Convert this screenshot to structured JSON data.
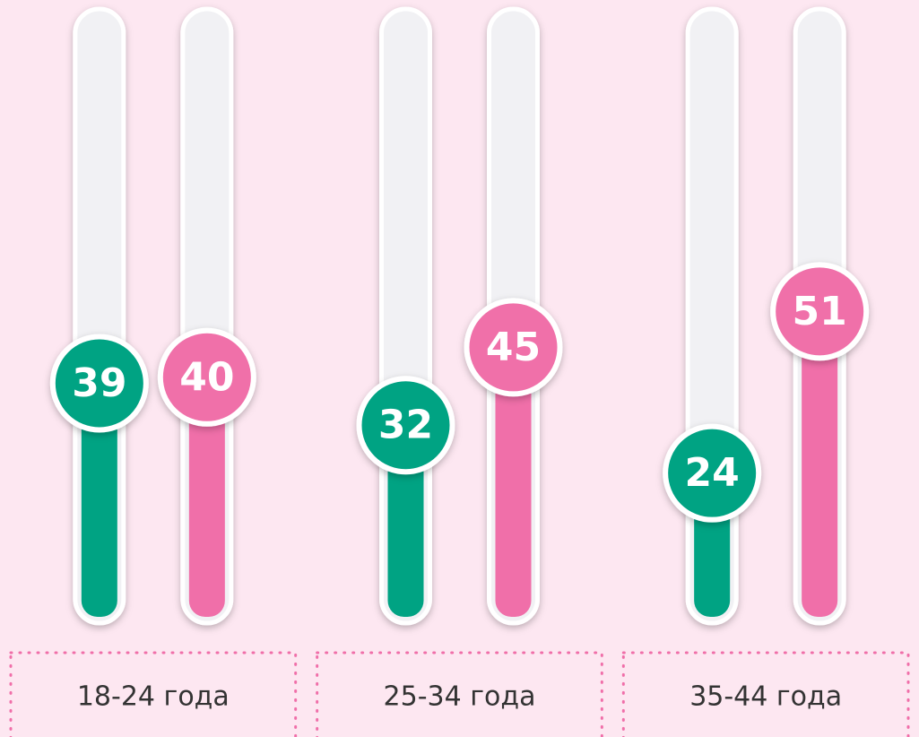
{
  "chart_data": {
    "type": "bar",
    "categories": [
      "18-24 года",
      "25-34 года",
      "35-44 года"
    ],
    "series": [
      {
        "color": "#00a383",
        "values": [
          39,
          32,
          24
        ]
      },
      {
        "color": "#f06fa9",
        "values": [
          40,
          45,
          51
        ]
      }
    ],
    "ylim": [
      0,
      100
    ]
  }
}
